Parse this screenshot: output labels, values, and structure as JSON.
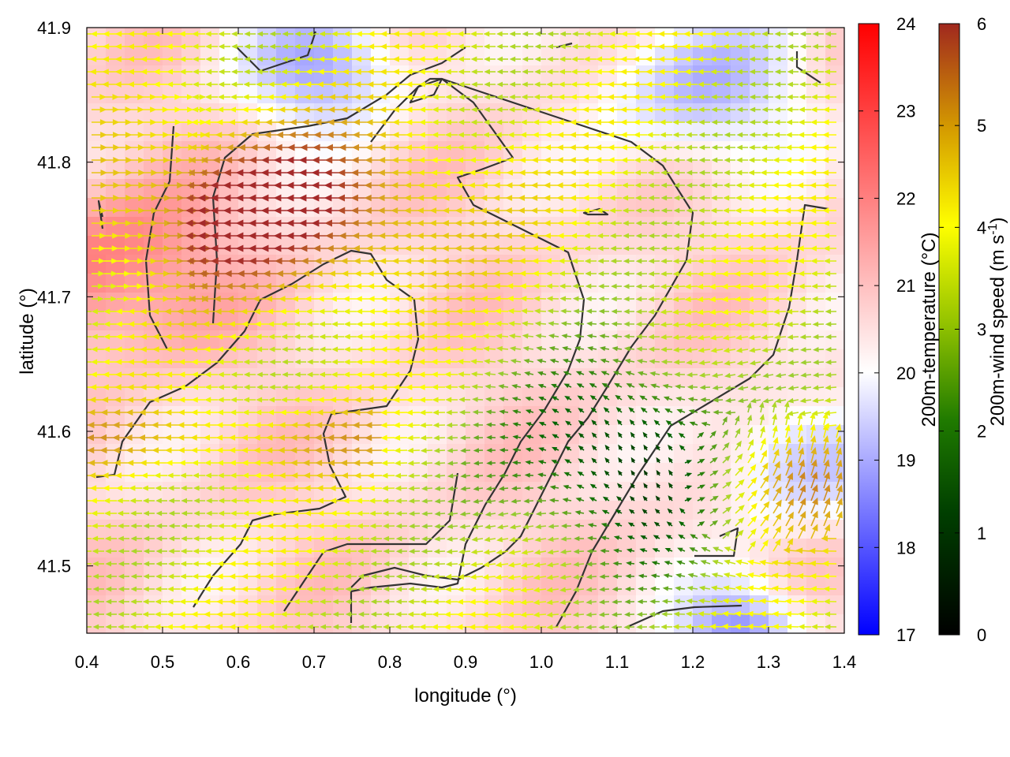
{
  "chart_data": {
    "type": "heatmap",
    "xlabel": "longitude (°)",
    "ylabel": "latitude (°)",
    "xlim": [
      0.4,
      1.4
    ],
    "ylim": [
      41.45,
      41.9
    ],
    "x_ticks": [
      "0.4",
      "0.5",
      "0.6",
      "0.7",
      "0.8",
      "0.9",
      "1.0",
      "1.1",
      "1.2",
      "1.3",
      "1.4"
    ],
    "y_ticks": [
      "41.5",
      "41.6",
      "41.7",
      "41.8",
      "41.9"
    ],
    "temperature_colorbar": {
      "label": "200m-temperature (°C)",
      "range": [
        17,
        24
      ],
      "ticks": [
        "17",
        "18",
        "19",
        "20",
        "21",
        "22",
        "23",
        "24"
      ],
      "colors": [
        "#0000ff",
        "#ffffff",
        "#ff0000"
      ]
    },
    "wind_colorbar": {
      "label_main": "200m-wind speed (m s",
      "label_exp": "-1",
      "label_end": ")",
      "range": [
        0,
        6
      ],
      "ticks": [
        "0",
        "1",
        "2",
        "3",
        "4",
        "5",
        "6"
      ],
      "colors": [
        "#000000",
        "#006400",
        "#9acd32",
        "#ffff00",
        "#daa520",
        "#a52a2a"
      ]
    },
    "grid": false,
    "legend": "none"
  }
}
